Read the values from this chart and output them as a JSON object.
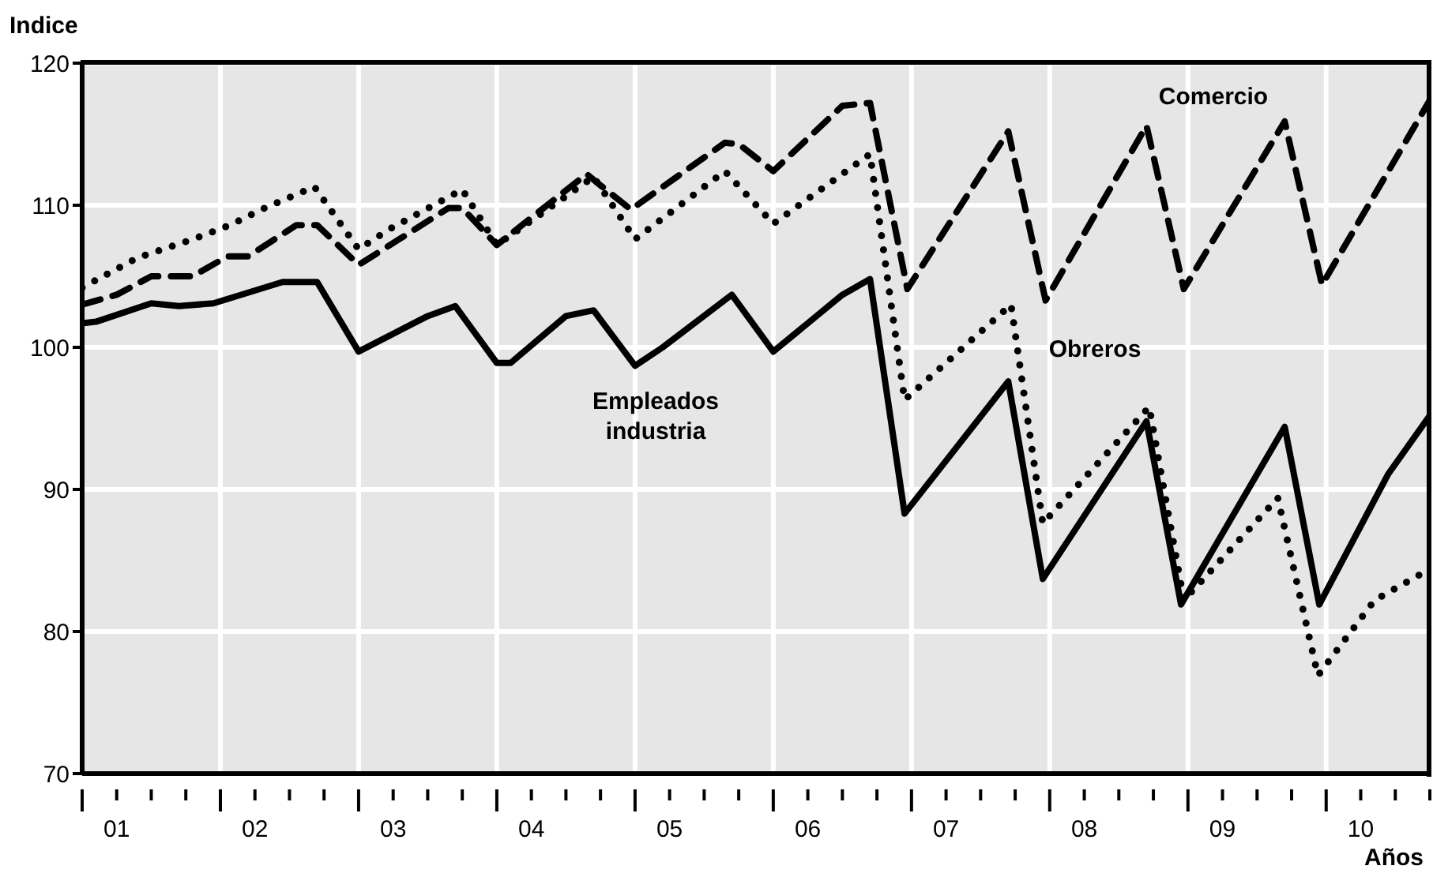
{
  "chart_data": {
    "type": "line",
    "ylabel": "Indice",
    "xlabel": "Años",
    "xlim": [
      1,
      10.75
    ],
    "ylim": [
      70,
      120
    ],
    "yticks": [
      70,
      80,
      90,
      100,
      110,
      120
    ],
    "xticks": [
      {
        "value": 1,
        "label": null
      },
      {
        "value": 1.25,
        "label": "01"
      },
      {
        "value": 1.5,
        "label": null
      },
      {
        "value": 1.75,
        "label": null
      },
      {
        "value": 2,
        "label": null
      },
      {
        "value": 2.25,
        "label": "02"
      },
      {
        "value": 2.5,
        "label": null
      },
      {
        "value": 2.75,
        "label": null
      },
      {
        "value": 3,
        "label": null
      },
      {
        "value": 3.25,
        "label": "03"
      },
      {
        "value": 3.5,
        "label": null
      },
      {
        "value": 3.75,
        "label": null
      },
      {
        "value": 4,
        "label": null
      },
      {
        "value": 4.25,
        "label": "04"
      },
      {
        "value": 4.5,
        "label": null
      },
      {
        "value": 4.75,
        "label": null
      },
      {
        "value": 5,
        "label": null
      },
      {
        "value": 5.25,
        "label": "05"
      },
      {
        "value": 5.5,
        "label": null
      },
      {
        "value": 5.75,
        "label": null
      },
      {
        "value": 6,
        "label": null
      },
      {
        "value": 6.25,
        "label": "06"
      },
      {
        "value": 6.5,
        "label": null
      },
      {
        "value": 6.75,
        "label": null
      },
      {
        "value": 7,
        "label": null
      },
      {
        "value": 7.25,
        "label": "07"
      },
      {
        "value": 7.5,
        "label": null
      },
      {
        "value": 7.75,
        "label": null
      },
      {
        "value": 8,
        "label": null
      },
      {
        "value": 8.25,
        "label": "08"
      },
      {
        "value": 8.5,
        "label": null
      },
      {
        "value": 8.75,
        "label": null
      },
      {
        "value": 9,
        "label": null
      },
      {
        "value": 9.25,
        "label": "09"
      },
      {
        "value": 9.5,
        "label": null
      },
      {
        "value": 9.75,
        "label": null
      },
      {
        "value": 10,
        "label": null
      },
      {
        "value": 10.25,
        "label": "10"
      },
      {
        "value": 10.5,
        "label": null
      },
      {
        "value": 10.75,
        "label": null
      }
    ],
    "grid": true,
    "marker": "none",
    "series": [
      {
        "name": "Empleados industria",
        "color": "#000000",
        "line_style": "solid",
        "x": [
          1,
          1.1,
          1.5,
          1.7,
          1.95,
          2.45,
          2.7,
          3,
          3.5,
          3.7,
          4,
          4.1,
          4.5,
          4.7,
          5,
          5.2,
          5.7,
          6,
          6.5,
          6.7,
          6.95,
          7.7,
          7.95,
          8.7,
          8.95,
          9.7,
          9.95,
          10.45,
          10.75
        ],
        "values": [
          101.7,
          101.8,
          103.1,
          102.9,
          103.1,
          104.6,
          104.6,
          99.7,
          102.2,
          102.9,
          98.9,
          98.9,
          102.2,
          102.6,
          98.7,
          100,
          103.7,
          99.7,
          103.7,
          104.8,
          88.3,
          97.6,
          83.7,
          94.8,
          81.9,
          94.4,
          81.9,
          91.1,
          95.2
        ]
      },
      {
        "name": "Comercio",
        "color": "#000000",
        "line_style": "dashed",
        "x": [
          1,
          1.25,
          1.5,
          1.8,
          2.05,
          2.2,
          2.55,
          2.7,
          3,
          3.65,
          3.75,
          4,
          4.65,
          4.75,
          4.97,
          5.65,
          5.75,
          6,
          6.5,
          6.7,
          6.97,
          7.7,
          7.97,
          8.7,
          8.97,
          9.7,
          9.97,
          10.75
        ],
        "values": [
          103,
          103.7,
          105,
          105,
          106.4,
          106.4,
          108.6,
          108.6,
          105.8,
          109.8,
          109.8,
          107.2,
          112.2,
          111.4,
          109.7,
          114.4,
          114.3,
          112.4,
          117,
          117.2,
          104.1,
          115.2,
          103.3,
          115.6,
          104.1,
          115.9,
          104.4,
          117.4
        ]
      },
      {
        "name": "Obreros",
        "color": "#000000",
        "line_style": "dotted",
        "x": [
          1,
          1.4,
          1.8,
          2.07,
          2.32,
          2.68,
          3,
          3.22,
          3.75,
          4,
          4.7,
          5,
          5.65,
          6,
          6.7,
          6.95,
          7.72,
          7.95,
          8.72,
          8.97,
          9.65,
          9.94,
          10.35,
          10.75
        ],
        "values": [
          104.2,
          106.3,
          107.6,
          108.6,
          109.8,
          111.3,
          106.9,
          108.3,
          111.1,
          107.2,
          112,
          107.6,
          112.4,
          108.7,
          113.6,
          96.3,
          103,
          87.6,
          95.8,
          82.2,
          89.4,
          76.9,
          82.2,
          84.4
        ]
      }
    ]
  }
}
